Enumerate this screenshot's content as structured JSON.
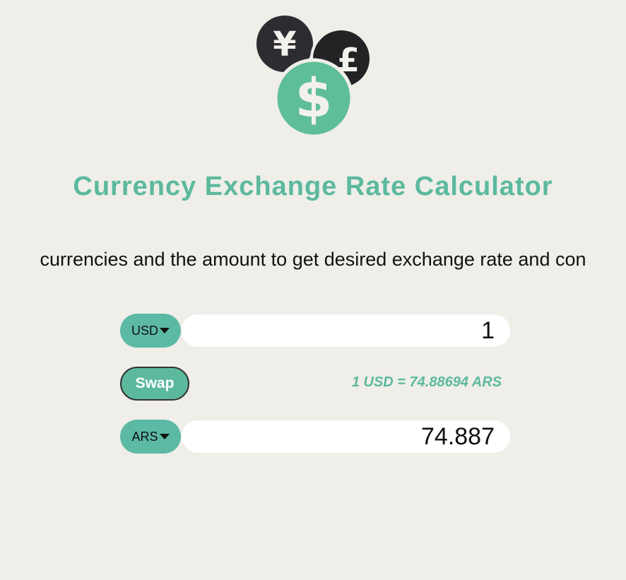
{
  "icon": {
    "symbols": [
      "¥",
      "£",
      "$"
    ]
  },
  "header": {
    "title": "Currency Exchange Rate Calculator",
    "instruction": "currencies and the amount to get desired exchange rate and con"
  },
  "converter": {
    "from": {
      "currency": "USD",
      "amount": "1"
    },
    "swap": {
      "label": "Swap"
    },
    "rate": "1 USD = 74.88694 ARS",
    "to": {
      "currency": "ARS",
      "amount": "74.887"
    }
  }
}
